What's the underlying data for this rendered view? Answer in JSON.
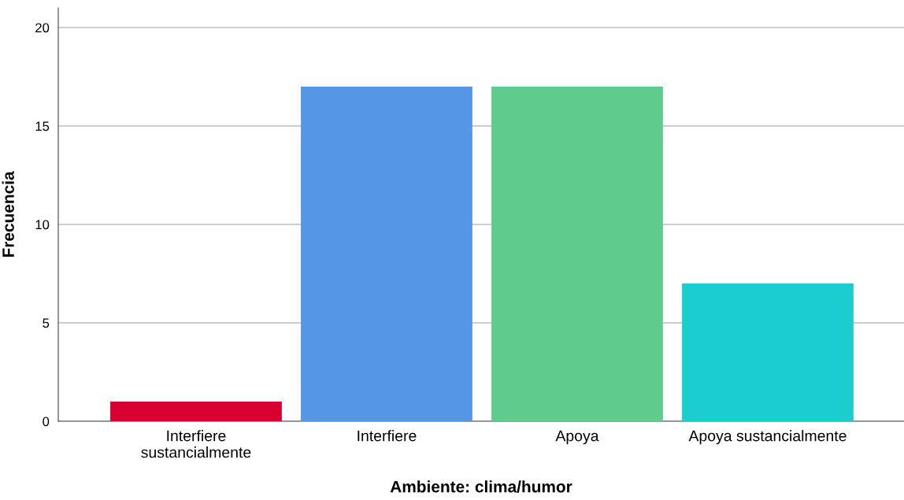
{
  "chart_data": {
    "type": "bar",
    "xlabel": "Ambiente: clima/humor",
    "ylabel": "Frecuencia",
    "categories": [
      "Interfiere\nsustancialmente",
      "Interfiere",
      "Apoya",
      "Apoya sustancialmente"
    ],
    "values": [
      1,
      17,
      17,
      7
    ],
    "colors": [
      "#d70033",
      "#5596e6",
      "#5fcb8c",
      "#1ccdd0"
    ],
    "ylim": [
      0,
      21
    ],
    "yticks": [
      0,
      5,
      10,
      15,
      20
    ],
    "grid": "y"
  }
}
